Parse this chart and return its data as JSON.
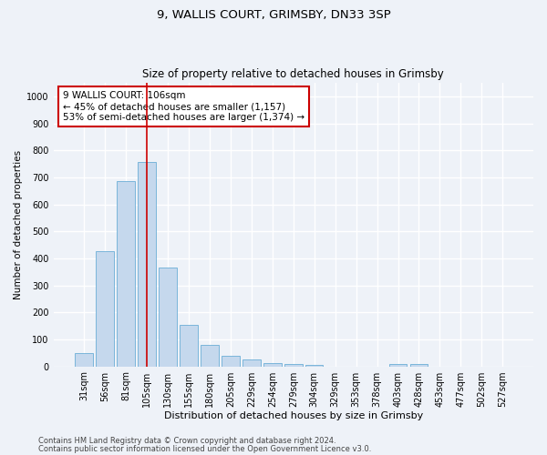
{
  "title1": "9, WALLIS COURT, GRIMSBY, DN33 3SP",
  "title2": "Size of property relative to detached houses in Grimsby",
  "xlabel": "Distribution of detached houses by size in Grimsby",
  "ylabel": "Number of detached properties",
  "categories": [
    "31sqm",
    "56sqm",
    "81sqm",
    "105sqm",
    "130sqm",
    "155sqm",
    "180sqm",
    "205sqm",
    "229sqm",
    "254sqm",
    "279sqm",
    "304sqm",
    "329sqm",
    "353sqm",
    "378sqm",
    "403sqm",
    "428sqm",
    "453sqm",
    "477sqm",
    "502sqm",
    "527sqm"
  ],
  "values": [
    50,
    425,
    685,
    758,
    365,
    155,
    78,
    40,
    25,
    13,
    8,
    5,
    0,
    0,
    0,
    8,
    8,
    0,
    0,
    0,
    0
  ],
  "bar_color": "#c5d8ed",
  "bar_edge_color": "#6baed6",
  "vline_x_idx": 3,
  "vline_color": "#cc0000",
  "annotation_line1": "9 WALLIS COURT: 106sqm",
  "annotation_line2": "← 45% of detached houses are smaller (1,157)",
  "annotation_line3": "53% of semi-detached houses are larger (1,374) →",
  "annotation_box_color": "#ffffff",
  "annotation_box_edge": "#cc0000",
  "ylim": [
    0,
    1050
  ],
  "yticks": [
    0,
    100,
    200,
    300,
    400,
    500,
    600,
    700,
    800,
    900,
    1000
  ],
  "footer1": "Contains HM Land Registry data © Crown copyright and database right 2024.",
  "footer2": "Contains public sector information licensed under the Open Government Licence v3.0.",
  "bg_color": "#eef2f8",
  "plot_bg_color": "#eef2f8",
  "title1_fontsize": 9.5,
  "title2_fontsize": 8.5,
  "xlabel_fontsize": 8,
  "ylabel_fontsize": 7.5,
  "tick_fontsize": 7,
  "footer_fontsize": 6
}
